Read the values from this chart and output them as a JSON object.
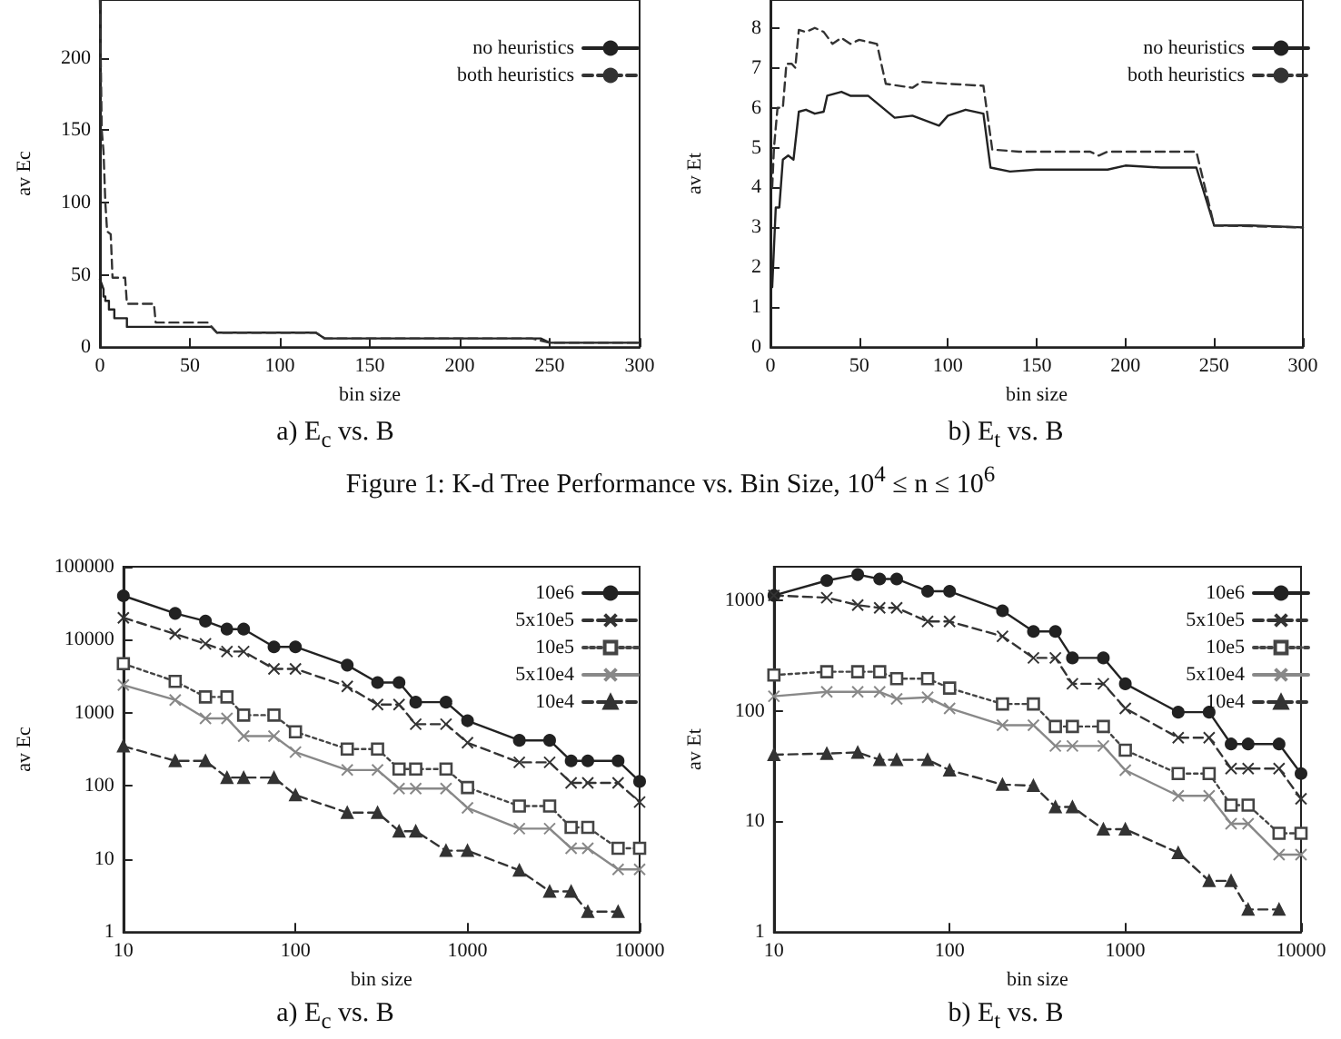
{
  "chart_data": [
    {
      "type": "line",
      "title": "a) E$_{c}$ vs. B",
      "xlabel": "bin size",
      "ylabel": "av Ec",
      "xlim": [
        0,
        300
      ],
      "xticks": [
        0,
        50,
        100,
        150,
        200,
        250,
        300
      ],
      "ylim": [
        0,
        240
      ],
      "yticks": [
        0,
        50,
        100,
        150,
        200
      ],
      "grid": false,
      "legend": "top right",
      "marker": "none",
      "series": [
        {
          "name": "no heuristics",
          "color": "#222222",
          "line_style": "solid",
          "x": [
            0,
            2,
            2,
            3,
            3,
            5,
            5,
            8,
            8,
            15,
            15,
            31,
            31,
            62,
            65,
            120,
            125,
            245,
            250,
            300
          ],
          "values": [
            47,
            40,
            35,
            35,
            32,
            32,
            26,
            26,
            20,
            20,
            14,
            14,
            14,
            14,
            10,
            10,
            6,
            6,
            3,
            3
          ]
        },
        {
          "name": "both heuristics",
          "color": "#333333",
          "line_style": "dashed",
          "x": [
            0,
            1,
            2,
            3,
            4,
            6,
            7,
            14,
            15,
            30,
            31,
            60,
            65,
            120,
            125,
            240,
            250,
            300
          ],
          "values": [
            240,
            150,
            135,
            100,
            80,
            78,
            48,
            48,
            30,
            30,
            17,
            17,
            10,
            10,
            6,
            6,
            3,
            3
          ]
        }
      ],
      "annotations": [
        "Figure 1: K-d Tree Performance vs. Bin Size, 10$^{4}$ ≤ n ≤ 10$^{6}$"
      ]
    },
    {
      "type": "line",
      "title": "b) E$_{t}$ vs. B",
      "xlabel": "bin size",
      "ylabel": "av Et",
      "xlim": [
        0,
        300
      ],
      "xticks": [
        0,
        50,
        100,
        150,
        200,
        250,
        300
      ],
      "ylim": [
        0,
        8.7
      ],
      "yticks": [
        0,
        1,
        2,
        3,
        4,
        5,
        6,
        7,
        8
      ],
      "grid": false,
      "legend": "top right",
      "marker": "none",
      "series": [
        {
          "name": "no heuristics",
          "color": "#222222",
          "line_style": "solid",
          "x": [
            1,
            2,
            3,
            5,
            7,
            10,
            13,
            16,
            20,
            25,
            30,
            32,
            40,
            45,
            55,
            70,
            80,
            95,
            100,
            110,
            120,
            124,
            135,
            150,
            170,
            190,
            200,
            220,
            240,
            250,
            270,
            300
          ],
          "values": [
            1.5,
            2.5,
            3.5,
            3.5,
            4.7,
            4.8,
            4.7,
            5.9,
            5.95,
            5.85,
            5.9,
            6.3,
            6.4,
            6.3,
            6.3,
            5.75,
            5.8,
            5.55,
            5.8,
            5.95,
            5.85,
            4.5,
            4.4,
            4.45,
            4.45,
            4.45,
            4.55,
            4.5,
            4.5,
            3.05,
            3.05,
            3
          ]
        },
        {
          "name": "both heuristics",
          "color": "#333333",
          "line_style": "dashed",
          "x": [
            1,
            2,
            4,
            7,
            9,
            12,
            14,
            16,
            20,
            25,
            30,
            35,
            40,
            45,
            50,
            60,
            65,
            80,
            85,
            100,
            120,
            125,
            140,
            180,
            185,
            190,
            240,
            250,
            300
          ],
          "values": [
            4,
            5,
            6,
            6,
            7.1,
            7.1,
            7,
            7.95,
            7.9,
            8,
            7.9,
            7.6,
            7.75,
            7.6,
            7.7,
            7.6,
            6.6,
            6.5,
            6.65,
            6.6,
            6.55,
            4.95,
            4.9,
            4.9,
            4.8,
            4.9,
            4.9,
            3.05,
            3
          ]
        }
      ]
    },
    {
      "type": "line",
      "title": "a) E$_{c}$ vs. B",
      "xlabel": "bin size",
      "ylabel": "av Ec",
      "log": "xy",
      "xlim": [
        10,
        10000
      ],
      "xticks": [
        10,
        100,
        1000,
        10000
      ],
      "ylim": [
        1,
        100000
      ],
      "yticks": [
        1,
        10,
        100,
        1000,
        10000,
        100000
      ],
      "grid": false,
      "legend": "top right",
      "x": [
        10,
        20,
        30,
        40,
        50,
        75,
        100,
        200,
        300,
        400,
        500,
        750,
        1000,
        2000,
        3000,
        4000,
        5000,
        7500,
        10000
      ],
      "series": [
        {
          "name": "10e6",
          "color": "#222222",
          "marker": "circle",
          "line_style": "solid",
          "values": [
            40000,
            23000,
            18000,
            14000,
            14000,
            8000,
            8000,
            4500,
            2600,
            2600,
            1400,
            1400,
            780,
            420,
            420,
            220,
            220,
            220,
            115
          ]
        },
        {
          "name": "5x10e5",
          "color": "#333333",
          "marker": "cross",
          "line_style": "dashed",
          "values": [
            20000,
            12000,
            8800,
            6900,
            6900,
            4000,
            4000,
            2300,
            1300,
            1300,
            700,
            700,
            390,
            210,
            210,
            110,
            110,
            110,
            60
          ]
        },
        {
          "name": "10e5",
          "color": "#444444",
          "marker": "square",
          "line_style": "dotted",
          "values": [
            4700,
            2700,
            1650,
            1650,
            930,
            930,
            550,
            320,
            320,
            170,
            170,
            170,
            95,
            53,
            53,
            27,
            27,
            14,
            14
          ]
        },
        {
          "name": "5x10e4",
          "color": "#888888",
          "marker": "cross",
          "line_style": "solid",
          "values": [
            2400,
            1500,
            840,
            840,
            480,
            480,
            290,
            165,
            165,
            92,
            92,
            92,
            50,
            26,
            26,
            14,
            14,
            7.2,
            7.2
          ]
        },
        {
          "name": "10e4",
          "color": "#333333",
          "marker": "triangle",
          "line_style": "dashed",
          "values": [
            350,
            220,
            220,
            130,
            130,
            130,
            75,
            43,
            43,
            24,
            24,
            13,
            13,
            7,
            3.6,
            3.6,
            1.9,
            1.9,
            null
          ]
        }
      ]
    },
    {
      "type": "line",
      "title": "b) E$_{t}$ vs. B",
      "xlabel": "bin size",
      "ylabel": "av Et",
      "log": "xy",
      "xlim": [
        10,
        10000
      ],
      "xticks": [
        10,
        100,
        1000,
        10000
      ],
      "ylim": [
        1,
        2000
      ],
      "yticks": [
        1,
        10,
        100,
        1000
      ],
      "grid": false,
      "legend": "top right",
      "x": [
        10,
        20,
        30,
        40,
        50,
        75,
        100,
        200,
        300,
        400,
        500,
        750,
        1000,
        2000,
        3000,
        4000,
        5000,
        7500,
        10000
      ],
      "series": [
        {
          "name": "10e6",
          "color": "#222222",
          "marker": "circle",
          "line_style": "solid",
          "values": [
            1100,
            1500,
            1700,
            1550,
            1550,
            1200,
            1200,
            800,
            520,
            520,
            300,
            300,
            175,
            97,
            97,
            50,
            50,
            50,
            27
          ]
        },
        {
          "name": "5x10e5",
          "color": "#333333",
          "marker": "cross",
          "line_style": "dashed",
          "values": [
            1100,
            1050,
            900,
            850,
            850,
            640,
            640,
            470,
            300,
            300,
            175,
            175,
            105,
            57,
            57,
            30,
            30,
            30,
            16
          ]
        },
        {
          "name": "10e5",
          "color": "#444444",
          "marker": "square",
          "line_style": "dotted",
          "values": [
            210,
            225,
            225,
            225,
            195,
            195,
            160,
            115,
            115,
            72,
            72,
            72,
            44,
            27,
            27,
            14,
            14,
            7.8,
            7.8
          ]
        },
        {
          "name": "5x10e4",
          "color": "#888888",
          "marker": "cross",
          "line_style": "solid",
          "values": [
            135,
            148,
            148,
            148,
            128,
            132,
            105,
            74,
            74,
            48,
            48,
            48,
            29,
            17,
            17,
            9.5,
            9.5,
            5,
            5
          ]
        },
        {
          "name": "10e4",
          "color": "#333333",
          "marker": "triangle",
          "line_style": "dashed",
          "values": [
            40,
            41,
            42,
            36,
            36,
            36,
            29,
            21.5,
            21,
            13.5,
            13.5,
            8.5,
            8.5,
            5.2,
            2.9,
            2.9,
            1.6,
            1.6,
            null
          ]
        }
      ]
    }
  ]
}
